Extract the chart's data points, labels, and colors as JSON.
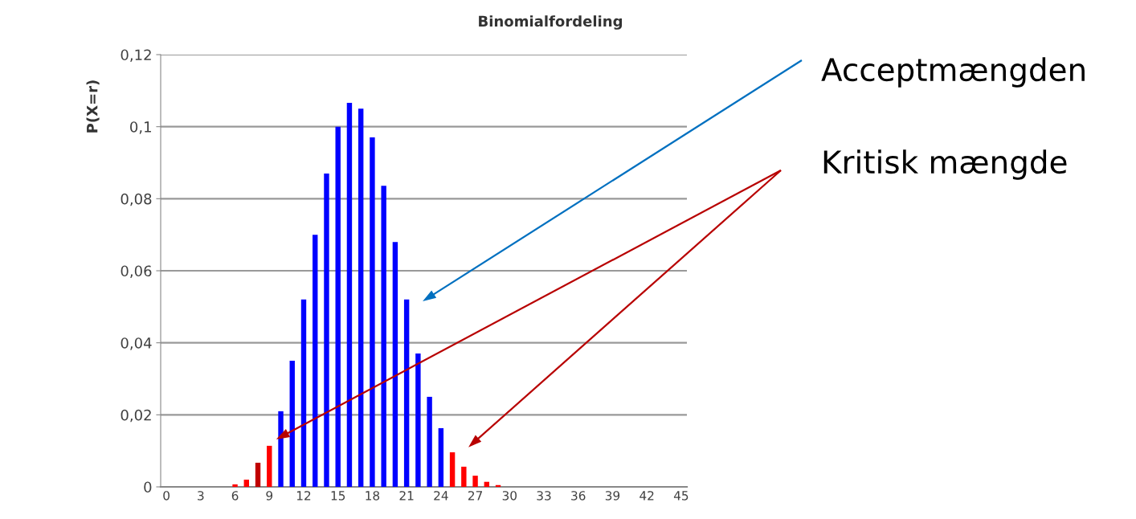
{
  "chart_data": {
    "type": "bar",
    "title": "Binomialfordeling",
    "ylabel": "P(X=r)",
    "categories": [
      "0",
      null,
      null,
      "3",
      null,
      null,
      "6",
      null,
      null,
      "9",
      null,
      null,
      "12",
      null,
      null,
      "15",
      null,
      null,
      "18",
      null,
      null,
      "21",
      null,
      null,
      "24",
      null,
      null,
      "27",
      null,
      null,
      "30",
      null,
      null,
      "33",
      null,
      null,
      "36",
      null,
      null,
      "39",
      null,
      null,
      "42",
      null,
      null,
      "45"
    ],
    "values": [
      0,
      0,
      0,
      0,
      0,
      0,
      0.0007,
      0.002,
      0.0067,
      0.0114,
      0.021,
      0.035,
      0.052,
      0.07,
      0.087,
      0.1,
      0.1066,
      0.105,
      0.097,
      0.0836,
      0.068,
      0.052,
      0.037,
      0.025,
      0.0163,
      0.0096,
      0.0056,
      0.0031,
      0.0014,
      0.0005,
      0,
      0,
      0,
      0,
      0,
      0,
      0,
      0,
      0,
      0,
      0,
      0,
      0,
      0,
      0,
      0
    ],
    "colors": [
      "#ff0000",
      "#ff0000",
      "#ff0000",
      "#ff0000",
      "#ff0000",
      "#ff0000",
      "#ff0000",
      "#ff0000",
      "#c00000",
      "#ff0000",
      "#0000ff",
      "#0000ff",
      "#0000ff",
      "#0000ff",
      "#0000ff",
      "#0000ff",
      "#0000ff",
      "#0000ff",
      "#0000ff",
      "#0000ff",
      "#0000ff",
      "#0000ff",
      "#0000ff",
      "#0000ff",
      "#0000ff",
      "#ff0000",
      "#ff0000",
      "#ff0000",
      "#ff0000",
      "#ff0000",
      "#ff0000",
      "#ff0000",
      "#ff0000",
      "#ff0000",
      "#ff0000",
      "#ff0000",
      "#ff0000",
      "#ff0000",
      "#ff0000",
      "#ff0000",
      "#ff0000",
      "#ff0000",
      "#ff0000",
      "#ff0000",
      "#ff0000",
      "#ff0000"
    ],
    "ylim": [
      0,
      0.12
    ],
    "yticks": [
      {
        "value": 0,
        "label": "0"
      },
      {
        "value": 0.02,
        "label": "0,02"
      },
      {
        "value": 0.04,
        "label": "0,04"
      },
      {
        "value": 0.06,
        "label": "0,06"
      },
      {
        "value": 0.08,
        "label": "0,08"
      },
      {
        "value": 0.1,
        "label": "0,1"
      },
      {
        "value": 0.12,
        "label": "0,12"
      }
    ],
    "grid": "y",
    "annotations": [
      "Acceptmængden",
      "Kritisk mængde"
    ]
  }
}
